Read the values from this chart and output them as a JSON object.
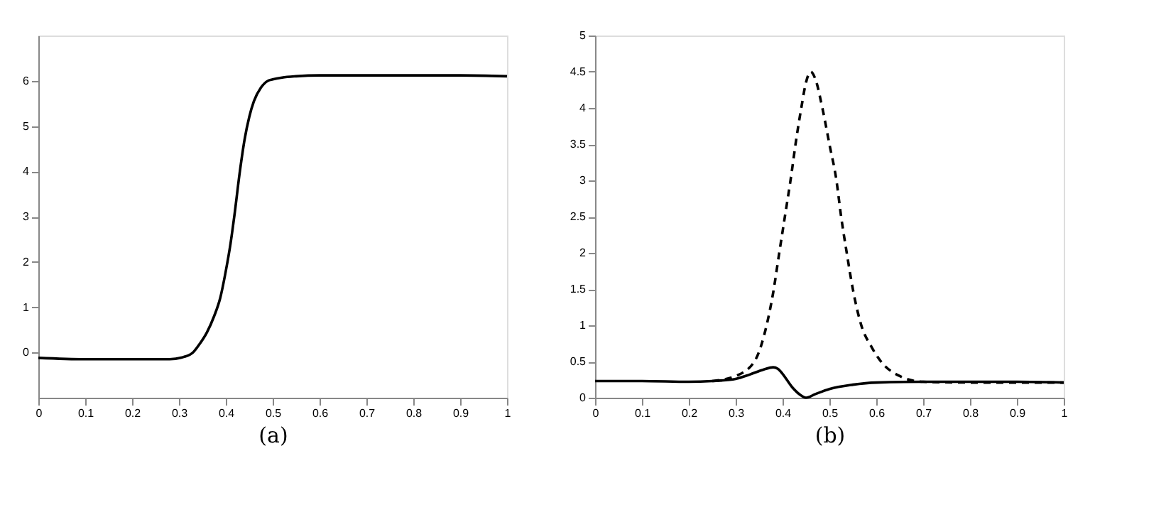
{
  "chart_data": [
    {
      "type": "line",
      "xlabel": "(a)",
      "xlim": [
        0,
        1
      ],
      "xticks": [
        0,
        0.1,
        0.2,
        0.3,
        0.4,
        0.5,
        0.6,
        0.7,
        0.8,
        0.9,
        1
      ],
      "ylim": [
        -1,
        7
      ],
      "yticks": [
        0,
        1,
        2,
        3,
        4,
        5,
        6
      ],
      "grid": false,
      "series": [
        {
          "color": "#000000",
          "line_style": "solid",
          "x": [
            0,
            0.1,
            0.2,
            0.28,
            0.31,
            0.33,
            0.345,
            0.36,
            0.375,
            0.388,
            0.4,
            0.41,
            0.418,
            0.43,
            0.44,
            0.45,
            0.46,
            0.475,
            0.49,
            0.5,
            0.52,
            0.55,
            0.6,
            0.7,
            0.8,
            0.9,
            1
          ],
          "values": [
            -0.12,
            -0.15,
            -0.15,
            -0.15,
            -0.1,
            0,
            0.2,
            0.45,
            0.8,
            1.2,
            1.8,
            2.4,
            3,
            4,
            4.7,
            5.2,
            5.55,
            5.85,
            6.0,
            6.03,
            6.07,
            6.1,
            6.12,
            6.12,
            6.12,
            6.12,
            6.1
          ]
        }
      ]
    },
    {
      "type": "line",
      "xlabel": "(b)",
      "xlim": [
        0,
        1
      ],
      "xticks": [
        0,
        0.1,
        0.2,
        0.3,
        0.4,
        0.5,
        0.6,
        0.7,
        0.8,
        0.9,
        1
      ],
      "ylim": [
        0,
        5
      ],
      "yticks": [
        0,
        0.5,
        1,
        1.5,
        2,
        2.5,
        3,
        3.5,
        4,
        4.5,
        5
      ],
      "grid": false,
      "series": [
        {
          "color": "#000000",
          "line_style": "dashed",
          "x": [
            0.25,
            0.3,
            0.34,
            0.366,
            0.38,
            0.393,
            0.405,
            0.417,
            0.43,
            0.44,
            0.45,
            0.46,
            0.47,
            0.485,
            0.5,
            0.515,
            0.525,
            0.537,
            0.55,
            0.568,
            0.59,
            0.61,
            0.65,
            0.7,
            0.8,
            1
          ],
          "values": [
            0.23,
            0.3,
            0.5,
            1,
            1.45,
            2,
            2.5,
            3,
            3.6,
            4,
            4.35,
            4.5,
            4.4,
            4,
            3.5,
            3,
            2.5,
            2,
            1.5,
            1,
            0.7,
            0.5,
            0.3,
            0.22,
            0.21,
            0.21
          ]
        },
        {
          "color": "#000000",
          "line_style": "solid",
          "x": [
            0,
            0.1,
            0.2,
            0.25,
            0.3,
            0.33,
            0.36,
            0.38,
            0.39,
            0.4,
            0.42,
            0.44,
            0.45,
            0.47,
            0.5,
            0.55,
            0.6,
            0.7,
            0.8,
            0.9,
            1
          ],
          "values": [
            0.23,
            0.23,
            0.22,
            0.23,
            0.26,
            0.32,
            0.39,
            0.42,
            0.4,
            0.33,
            0.15,
            0.03,
            0.0,
            0.05,
            0.12,
            0.18,
            0.21,
            0.22,
            0.22,
            0.22,
            0.21
          ]
        }
      ]
    }
  ]
}
